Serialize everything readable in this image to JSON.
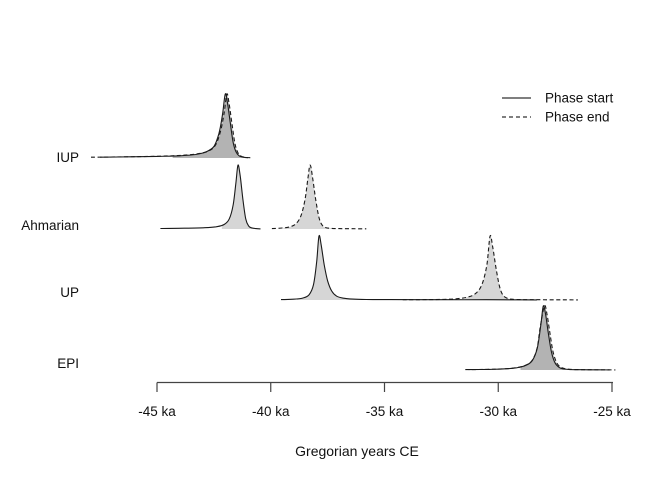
{
  "figure": {
    "background": "#ffffff",
    "curve_stroke": "#1a1a1a",
    "axis_stroke": "#444444",
    "fill_color": "rgba(0,0,0,0.16)"
  },
  "chart_data": {
    "type": "area",
    "title": "",
    "xlabel": "Gregorian years CE",
    "x_unit": "ka",
    "xlim": [
      -48,
      -24.8
    ],
    "grid": false,
    "legend_position": "top-right",
    "x_ticks": [
      {
        "value": -45,
        "label": "-45 ka"
      },
      {
        "value": -40,
        "label": "-40 ka"
      },
      {
        "value": -35,
        "label": "-35 ka"
      },
      {
        "value": -30,
        "label": "-30 ka"
      },
      {
        "value": -25,
        "label": "-25 ka"
      }
    ],
    "legend": {
      "entries": [
        {
          "label": "Phase start",
          "line": "solid"
        },
        {
          "label": "Phase end",
          "line": "dashed"
        }
      ]
    },
    "rows": [
      {
        "label": "IUP",
        "start": {
          "line": "solid",
          "peak_ka": -42.0,
          "fill_range": [
            -44.3,
            -41.02
          ],
          "points": [
            [
              -47.5,
              0.012
            ],
            [
              -46.2,
              0.018
            ],
            [
              -45.0,
              0.025
            ],
            [
              -44.0,
              0.035
            ],
            [
              -43.3,
              0.055
            ],
            [
              -42.85,
              0.095
            ],
            [
              -42.5,
              0.18
            ],
            [
              -42.28,
              0.38
            ],
            [
              -42.12,
              0.68
            ],
            [
              -42.0,
              1.0
            ],
            [
              -41.9,
              0.86
            ],
            [
              -41.78,
              0.55
            ],
            [
              -41.65,
              0.24
            ],
            [
              -41.52,
              0.09
            ],
            [
              -41.38,
              0.03
            ],
            [
              -41.2,
              0.012
            ],
            [
              -41.0,
              0.004
            ]
          ]
        },
        "end": {
          "line": "dashed",
          "peak_ka": -41.93,
          "fill_range": [
            -44.32,
            -40.98
          ],
          "points": [
            [
              -47.9,
              0.012
            ],
            [
              -46.4,
              0.018
            ],
            [
              -45.1,
              0.026
            ],
            [
              -44.1,
              0.038
            ],
            [
              -43.35,
              0.06
            ],
            [
              -42.8,
              0.1
            ],
            [
              -42.45,
              0.19
            ],
            [
              -42.22,
              0.4
            ],
            [
              -42.05,
              0.7
            ],
            [
              -41.93,
              1.0
            ],
            [
              -41.83,
              0.85
            ],
            [
              -41.7,
              0.52
            ],
            [
              -41.57,
              0.22
            ],
            [
              -41.44,
              0.08
            ],
            [
              -41.3,
              0.028
            ],
            [
              -41.1,
              0.01
            ],
            [
              -40.9,
              0.004
            ]
          ]
        }
      },
      {
        "label": "Ahmarian",
        "start": {
          "line": "solid",
          "peak_ka": -41.44,
          "fill_range": [
            -42.15,
            -40.83
          ],
          "points": [
            [
              -44.85,
              0.008
            ],
            [
              -43.8,
              0.012
            ],
            [
              -42.9,
              0.02
            ],
            [
              -42.4,
              0.035
            ],
            [
              -42.05,
              0.07
            ],
            [
              -41.82,
              0.16
            ],
            [
              -41.65,
              0.38
            ],
            [
              -41.53,
              0.72
            ],
            [
              -41.44,
              1.0
            ],
            [
              -41.34,
              0.82
            ],
            [
              -41.22,
              0.45
            ],
            [
              -41.1,
              0.16
            ],
            [
              -40.98,
              0.05
            ],
            [
              -40.85,
              0.018
            ],
            [
              -40.65,
              0.006
            ],
            [
              -40.45,
              0.002
            ]
          ]
        },
        "end": {
          "line": "dashed",
          "peak_ka": -38.27,
          "fill_range": [
            -39.45,
            -37.3
          ],
          "points": [
            [
              -39.95,
              0.006
            ],
            [
              -39.5,
              0.015
            ],
            [
              -39.15,
              0.035
            ],
            [
              -38.9,
              0.08
            ],
            [
              -38.68,
              0.2
            ],
            [
              -38.5,
              0.45
            ],
            [
              -38.37,
              0.78
            ],
            [
              -38.27,
              1.0
            ],
            [
              -38.16,
              0.8
            ],
            [
              -38.02,
              0.45
            ],
            [
              -37.88,
              0.18
            ],
            [
              -37.74,
              0.06
            ],
            [
              -37.58,
              0.022
            ],
            [
              -37.35,
              0.01
            ],
            [
              -37.0,
              0.006
            ],
            [
              -36.4,
              0.004
            ],
            [
              -35.8,
              0.003
            ]
          ]
        }
      },
      {
        "label": "UP",
        "start": {
          "line": "solid",
          "peak_ka": -37.88,
          "fill_range": [
            -38.85,
            -35.9
          ],
          "points": [
            [
              -39.55,
              0.006
            ],
            [
              -39.0,
              0.012
            ],
            [
              -38.6,
              0.03
            ],
            [
              -38.32,
              0.08
            ],
            [
              -38.12,
              0.24
            ],
            [
              -37.98,
              0.6
            ],
            [
              -37.88,
              1.0
            ],
            [
              -37.78,
              0.85
            ],
            [
              -37.65,
              0.55
            ],
            [
              -37.5,
              0.3
            ],
            [
              -37.32,
              0.14
            ],
            [
              -37.1,
              0.06
            ],
            [
              -36.8,
              0.028
            ],
            [
              -36.4,
              0.014
            ],
            [
              -35.8,
              0.008
            ],
            [
              -34.8,
              0.006
            ],
            [
              -33.5,
              0.005
            ],
            [
              -32.0,
              0.004
            ],
            [
              -30.5,
              0.004
            ],
            [
              -29.3,
              0.003
            ],
            [
              -28.3,
              0.002
            ]
          ]
        },
        "end": {
          "line": "dashed",
          "peak_ka": -30.36,
          "fill_range": [
            -31.45,
            -29.48
          ],
          "points": [
            [
              -34.2,
              0.004
            ],
            [
              -33.2,
              0.006
            ],
            [
              -32.4,
              0.01
            ],
            [
              -31.8,
              0.02
            ],
            [
              -31.35,
              0.045
            ],
            [
              -31.0,
              0.1
            ],
            [
              -30.72,
              0.24
            ],
            [
              -30.5,
              0.55
            ],
            [
              -30.36,
              1.0
            ],
            [
              -30.24,
              0.82
            ],
            [
              -30.1,
              0.5
            ],
            [
              -29.95,
              0.22
            ],
            [
              -29.8,
              0.08
            ],
            [
              -29.62,
              0.03
            ],
            [
              -29.4,
              0.012
            ],
            [
              -29.0,
              0.006
            ],
            [
              -28.2,
              0.004
            ],
            [
              -27.2,
              0.003
            ],
            [
              -26.5,
              0.002
            ]
          ]
        }
      },
      {
        "label": "EPI",
        "start": {
          "line": "solid",
          "peak_ka": -28.02,
          "fill_range": [
            -29.05,
            -27.06
          ],
          "points": [
            [
              -31.3,
              0.006
            ],
            [
              -30.4,
              0.01
            ],
            [
              -29.7,
              0.018
            ],
            [
              -29.2,
              0.035
            ],
            [
              -28.8,
              0.07
            ],
            [
              -28.5,
              0.15
            ],
            [
              -28.28,
              0.35
            ],
            [
              -28.13,
              0.7
            ],
            [
              -28.02,
              1.0
            ],
            [
              -27.92,
              0.87
            ],
            [
              -27.8,
              0.58
            ],
            [
              -27.66,
              0.28
            ],
            [
              -27.5,
              0.11
            ],
            [
              -27.32,
              0.04
            ],
            [
              -27.1,
              0.015
            ],
            [
              -26.8,
              0.007
            ],
            [
              -26.3,
              0.004
            ],
            [
              -25.6,
              0.003
            ],
            [
              -25.1,
              0.002
            ]
          ]
        },
        "end": {
          "line": "dashed",
          "peak_ka": -27.97,
          "fill_range": [
            -29.0,
            -27.02
          ],
          "points": [
            [
              -31.45,
              0.006
            ],
            [
              -30.5,
              0.01
            ],
            [
              -29.75,
              0.018
            ],
            [
              -29.25,
              0.034
            ],
            [
              -28.84,
              0.068
            ],
            [
              -28.53,
              0.14
            ],
            [
              -28.3,
              0.33
            ],
            [
              -28.15,
              0.68
            ],
            [
              -27.97,
              1.0
            ],
            [
              -27.86,
              0.88
            ],
            [
              -27.74,
              0.6
            ],
            [
              -27.6,
              0.3
            ],
            [
              -27.44,
              0.12
            ],
            [
              -27.26,
              0.045
            ],
            [
              -27.03,
              0.017
            ],
            [
              -26.73,
              0.008
            ],
            [
              -26.2,
              0.005
            ],
            [
              -25.4,
              0.003
            ],
            [
              -24.85,
              0.002
            ]
          ]
        }
      }
    ]
  }
}
